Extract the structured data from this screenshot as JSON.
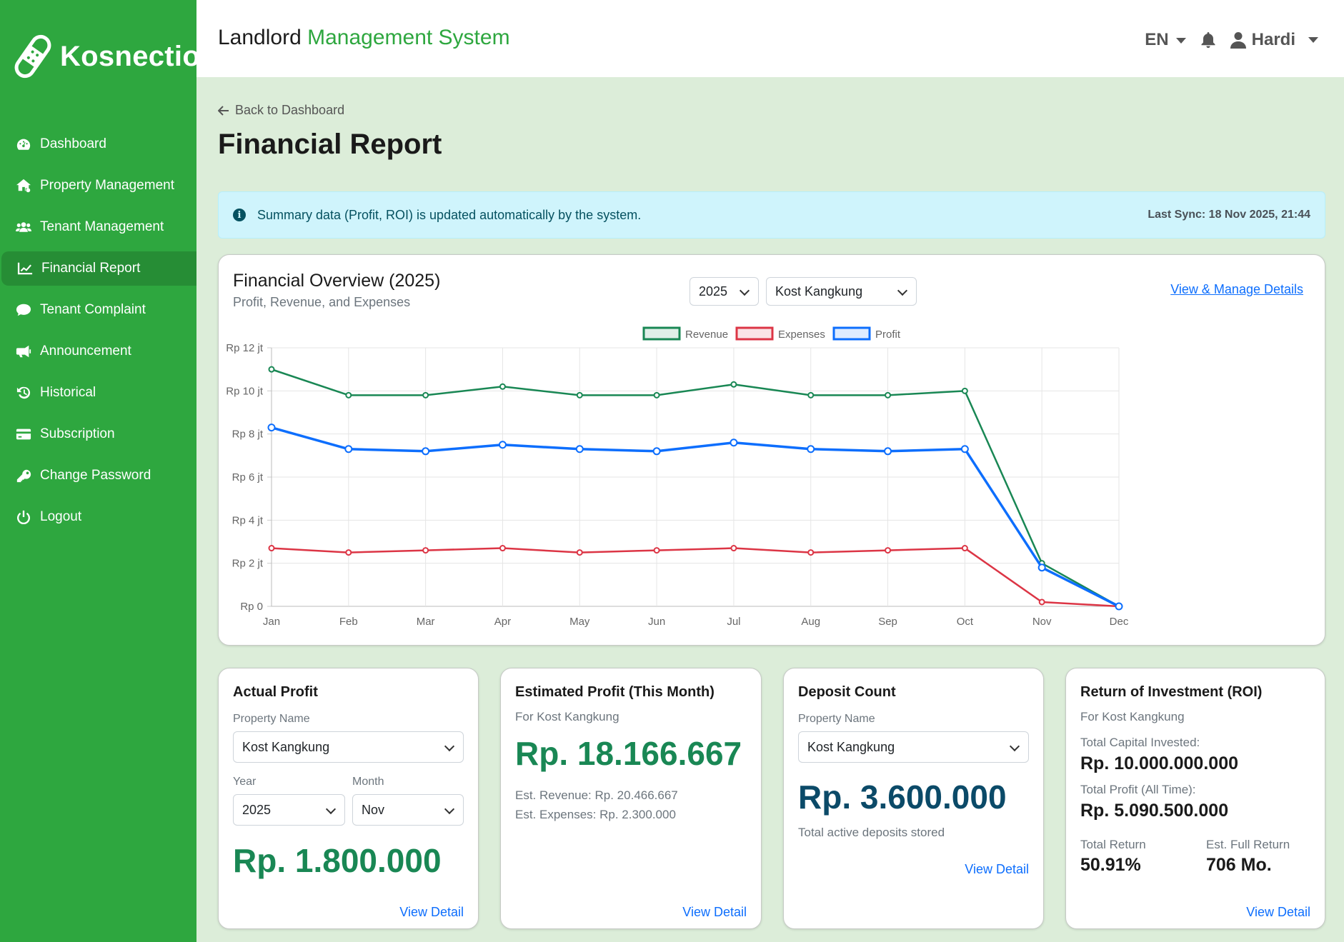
{
  "sidebar": {
    "brand": "Kosnection",
    "items": [
      {
        "label": "Dashboard",
        "icon": "gauge-icon"
      },
      {
        "label": "Property Management",
        "icon": "house-gear-icon"
      },
      {
        "label": "Tenant Management",
        "icon": "users-icon"
      },
      {
        "label": "Financial Report",
        "icon": "chart-line-icon",
        "active": true
      },
      {
        "label": "Tenant Complaint",
        "icon": "comment-icon"
      },
      {
        "label": "Announcement",
        "icon": "megaphone-icon"
      },
      {
        "label": "Historical",
        "icon": "history-icon"
      },
      {
        "label": "Subscription",
        "icon": "credit-card-icon"
      },
      {
        "label": "Change Password",
        "icon": "key-icon"
      },
      {
        "label": "Logout",
        "icon": "power-icon"
      }
    ]
  },
  "header": {
    "title_main": "Landlord",
    "title_accent": "Management System",
    "language": "EN",
    "user": "Hardi"
  },
  "main": {
    "back_label": "Back to Dashboard",
    "page_title": "Financial Report",
    "alert_text": "Summary data (Profit, ROI) is updated automatically by the system.",
    "last_sync": "Last Sync: 18 Nov 2025, 21:44"
  },
  "overview": {
    "title": "Financial Overview (2025)",
    "subtitle": "Profit, Revenue, and Expenses",
    "year_select": "2025",
    "property_select": "Kost Kangkung",
    "manage_link": "View & Manage Details"
  },
  "chart_data": {
    "type": "line",
    "categories": [
      "Jan",
      "Feb",
      "Mar",
      "Apr",
      "May",
      "Jun",
      "Jul",
      "Aug",
      "Sep",
      "Oct",
      "Nov",
      "Dec"
    ],
    "y_ticks": [
      "Rp 0",
      "Rp 2 jt",
      "Rp 4 jt",
      "Rp 6 jt",
      "Rp 8 jt",
      "Rp 10 jt",
      "Rp 12 jt"
    ],
    "ylim": [
      0,
      12000000
    ],
    "legend_position": "top",
    "grid": true,
    "series": [
      {
        "name": "Revenue",
        "color": "#198754",
        "values": [
          11000000,
          9800000,
          9800000,
          10200000,
          9800000,
          9800000,
          10300000,
          9800000,
          9800000,
          10000000,
          2000000,
          0
        ]
      },
      {
        "name": "Expenses",
        "color": "#dc3545",
        "values": [
          2700000,
          2500000,
          2600000,
          2700000,
          2500000,
          2600000,
          2700000,
          2500000,
          2600000,
          2700000,
          200000,
          0
        ]
      },
      {
        "name": "Profit",
        "color": "#0d6efd",
        "values": [
          8300000,
          7300000,
          7200000,
          7500000,
          7300000,
          7200000,
          7600000,
          7300000,
          7200000,
          7300000,
          1800000,
          0
        ]
      }
    ]
  },
  "actual_profit": {
    "title": "Actual Profit",
    "property_label": "Property Name",
    "property_value": "Kost Kangkung",
    "year_label": "Year",
    "year_value": "2025",
    "month_label": "Month",
    "month_value": "Nov",
    "value": "Rp. 1.800.000",
    "link": "View Detail"
  },
  "estimated_profit": {
    "title": "Estimated Profit (This Month)",
    "for_text": "For Kost Kangkung",
    "value": "Rp. 18.166.667",
    "est_revenue": "Est. Revenue: Rp. 20.466.667",
    "est_expenses": "Est. Expenses: Rp. 2.300.000",
    "link": "View Detail"
  },
  "deposit": {
    "title": "Deposit Count",
    "property_label": "Property Name",
    "property_value": "Kost Kangkung",
    "value": "Rp. 3.600.000",
    "note": "Total active deposits stored",
    "link": "View Detail"
  },
  "roi": {
    "title": "Return of Investment (ROI)",
    "for_text": "For Kost Kangkung",
    "capital_label": "Total Capital Invested:",
    "capital_value": "Rp. 10.000.000.000",
    "profit_label": "Total Profit (All Time):",
    "profit_value": "Rp. 5.090.500.000",
    "return_label": "Total Return",
    "return_value": "50.91%",
    "full_label": "Est. Full Return",
    "full_value": "706 Mo.",
    "link": "View Detail"
  }
}
